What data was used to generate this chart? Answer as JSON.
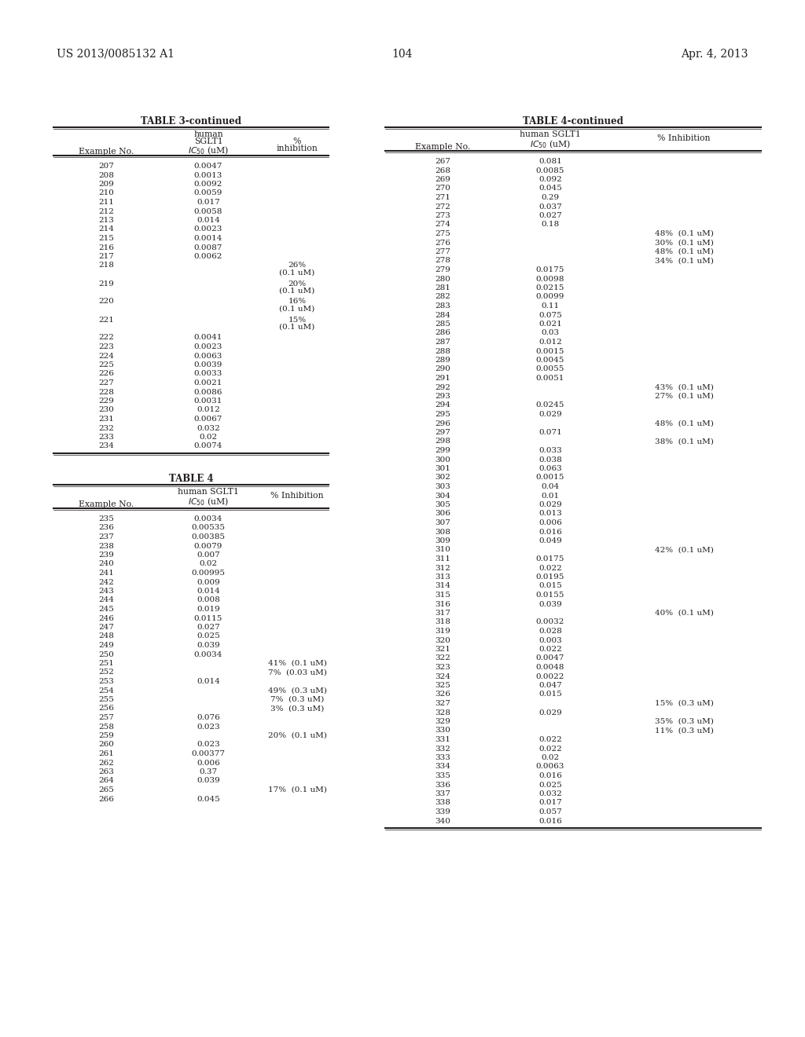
{
  "page_number": "104",
  "patent_number": "US 2013/0085132 A1",
  "patent_date": "Apr. 4, 2013",
  "background_color": "#ffffff",
  "text_color": "#231f20",
  "table3_continued": {
    "title": "TABLE 3-continued",
    "rows": [
      [
        "207",
        "0.0047",
        ""
      ],
      [
        "208",
        "0.0013",
        ""
      ],
      [
        "209",
        "0.0092",
        ""
      ],
      [
        "210",
        "0.0059",
        ""
      ],
      [
        "211",
        "0.017",
        ""
      ],
      [
        "212",
        "0.0058",
        ""
      ],
      [
        "213",
        "0.014",
        ""
      ],
      [
        "214",
        "0.0023",
        ""
      ],
      [
        "215",
        "0.0014",
        ""
      ],
      [
        "216",
        "0.0087",
        ""
      ],
      [
        "217",
        "0.0062",
        ""
      ],
      [
        "218",
        "",
        "26%\n(0.1 uM)"
      ],
      [
        "219",
        "",
        "20%\n(0.1 uM)"
      ],
      [
        "220",
        "",
        "16%\n(0.1 uM)"
      ],
      [
        "221",
        "",
        "15%\n(0.1 uM)"
      ],
      [
        "222",
        "0.0041",
        ""
      ],
      [
        "223",
        "0.0023",
        ""
      ],
      [
        "224",
        "0.0063",
        ""
      ],
      [
        "225",
        "0.0039",
        ""
      ],
      [
        "226",
        "0.0033",
        ""
      ],
      [
        "227",
        "0.0021",
        ""
      ],
      [
        "228",
        "0.0086",
        ""
      ],
      [
        "229",
        "0.0031",
        ""
      ],
      [
        "230",
        "0.012",
        ""
      ],
      [
        "231",
        "0.0067",
        ""
      ],
      [
        "232",
        "0.032",
        ""
      ],
      [
        "233",
        "0.02",
        ""
      ],
      [
        "234",
        "0.0074",
        ""
      ]
    ]
  },
  "table4": {
    "title": "TABLE 4",
    "rows": [
      [
        "235",
        "0.0034",
        ""
      ],
      [
        "236",
        "0.00535",
        ""
      ],
      [
        "237",
        "0.00385",
        ""
      ],
      [
        "238",
        "0.0079",
        ""
      ],
      [
        "239",
        "0.007",
        ""
      ],
      [
        "240",
        "0.02",
        ""
      ],
      [
        "241",
        "0.00995",
        ""
      ],
      [
        "242",
        "0.009",
        ""
      ],
      [
        "243",
        "0.014",
        ""
      ],
      [
        "244",
        "0.008",
        ""
      ],
      [
        "245",
        "0.019",
        ""
      ],
      [
        "246",
        "0.0115",
        ""
      ],
      [
        "247",
        "0.027",
        ""
      ],
      [
        "248",
        "0.025",
        ""
      ],
      [
        "249",
        "0.039",
        ""
      ],
      [
        "250",
        "0.0034",
        ""
      ],
      [
        "251",
        "",
        "41%  (0.1 uM)"
      ],
      [
        "252",
        "",
        "7%  (0.03 uM)"
      ],
      [
        "253",
        "0.014",
        ""
      ],
      [
        "254",
        "",
        "49%  (0.3 uM)"
      ],
      [
        "255",
        "",
        "7%  (0.3 uM)"
      ],
      [
        "256",
        "",
        "3%  (0.3 uM)"
      ],
      [
        "257",
        "0.076",
        ""
      ],
      [
        "258",
        "0.023",
        ""
      ],
      [
        "259",
        "",
        "20%  (0.1 uM)"
      ],
      [
        "260",
        "0.023",
        ""
      ],
      [
        "261",
        "0.00377",
        ""
      ],
      [
        "262",
        "0.006",
        ""
      ],
      [
        "263",
        "0.37",
        ""
      ],
      [
        "264",
        "0.039",
        ""
      ],
      [
        "265",
        "",
        "17%  (0.1 uM)"
      ],
      [
        "266",
        "0.045",
        ""
      ]
    ]
  },
  "table4_continued": {
    "title": "TABLE 4-continued",
    "rows": [
      [
        "267",
        "0.081",
        ""
      ],
      [
        "268",
        "0.0085",
        ""
      ],
      [
        "269",
        "0.092",
        ""
      ],
      [
        "270",
        "0.045",
        ""
      ],
      [
        "271",
        "0.29",
        ""
      ],
      [
        "272",
        "0.037",
        ""
      ],
      [
        "273",
        "0.027",
        ""
      ],
      [
        "274",
        "0.18",
        ""
      ],
      [
        "275",
        "",
        "48%  (0.1 uM)"
      ],
      [
        "276",
        "",
        "30%  (0.1 uM)"
      ],
      [
        "277",
        "",
        "48%  (0.1 uM)"
      ],
      [
        "278",
        "",
        "34%  (0.1 uM)"
      ],
      [
        "279",
        "0.0175",
        ""
      ],
      [
        "280",
        "0.0098",
        ""
      ],
      [
        "281",
        "0.0215",
        ""
      ],
      [
        "282",
        "0.0099",
        ""
      ],
      [
        "283",
        "0.11",
        ""
      ],
      [
        "284",
        "0.075",
        ""
      ],
      [
        "285",
        "0.021",
        ""
      ],
      [
        "286",
        "0.03",
        ""
      ],
      [
        "287",
        "0.012",
        ""
      ],
      [
        "288",
        "0.0015",
        ""
      ],
      [
        "289",
        "0.0045",
        ""
      ],
      [
        "290",
        "0.0055",
        ""
      ],
      [
        "291",
        "0.0051",
        ""
      ],
      [
        "292",
        "",
        "43%  (0.1 uM)"
      ],
      [
        "293",
        "",
        "27%  (0.1 uM)"
      ],
      [
        "294",
        "0.0245",
        ""
      ],
      [
        "295",
        "0.029",
        ""
      ],
      [
        "296",
        "",
        "48%  (0.1 uM)"
      ],
      [
        "297",
        "0.071",
        ""
      ],
      [
        "298",
        "",
        "38%  (0.1 uM)"
      ],
      [
        "299",
        "0.033",
        ""
      ],
      [
        "300",
        "0.038",
        ""
      ],
      [
        "301",
        "0.063",
        ""
      ],
      [
        "302",
        "0.0015",
        ""
      ],
      [
        "303",
        "0.04",
        ""
      ],
      [
        "304",
        "0.01",
        ""
      ],
      [
        "305",
        "0.029",
        ""
      ],
      [
        "306",
        "0.013",
        ""
      ],
      [
        "307",
        "0.006",
        ""
      ],
      [
        "308",
        "0.016",
        ""
      ],
      [
        "309",
        "0.049",
        ""
      ],
      [
        "310",
        "",
        "42%  (0.1 uM)"
      ],
      [
        "311",
        "0.0175",
        ""
      ],
      [
        "312",
        "0.022",
        ""
      ],
      [
        "313",
        "0.0195",
        ""
      ],
      [
        "314",
        "0.015",
        ""
      ],
      [
        "315",
        "0.0155",
        ""
      ],
      [
        "316",
        "0.039",
        ""
      ],
      [
        "317",
        "",
        "40%  (0.1 uM)"
      ],
      [
        "318",
        "0.0032",
        ""
      ],
      [
        "319",
        "0.028",
        ""
      ],
      [
        "320",
        "0.003",
        ""
      ],
      [
        "321",
        "0.022",
        ""
      ],
      [
        "322",
        "0.0047",
        ""
      ],
      [
        "323",
        "0.0048",
        ""
      ],
      [
        "324",
        "0.0022",
        ""
      ],
      [
        "325",
        "0.047",
        ""
      ],
      [
        "326",
        "0.015",
        ""
      ],
      [
        "327",
        "",
        "15%  (0.3 uM)"
      ],
      [
        "328",
        "0.029",
        ""
      ],
      [
        "329",
        "",
        "35%  (0.3 uM)"
      ],
      [
        "330",
        "",
        "11%  (0.3 uM)"
      ],
      [
        "331",
        "0.022",
        ""
      ],
      [
        "332",
        "0.022",
        ""
      ],
      [
        "333",
        "0.02",
        ""
      ],
      [
        "334",
        "0.0063",
        ""
      ],
      [
        "335",
        "0.016",
        ""
      ],
      [
        "336",
        "0.025",
        ""
      ],
      [
        "337",
        "0.032",
        ""
      ],
      [
        "338",
        "0.017",
        ""
      ],
      [
        "339",
        "0.057",
        ""
      ],
      [
        "340",
        "0.016",
        ""
      ]
    ]
  }
}
